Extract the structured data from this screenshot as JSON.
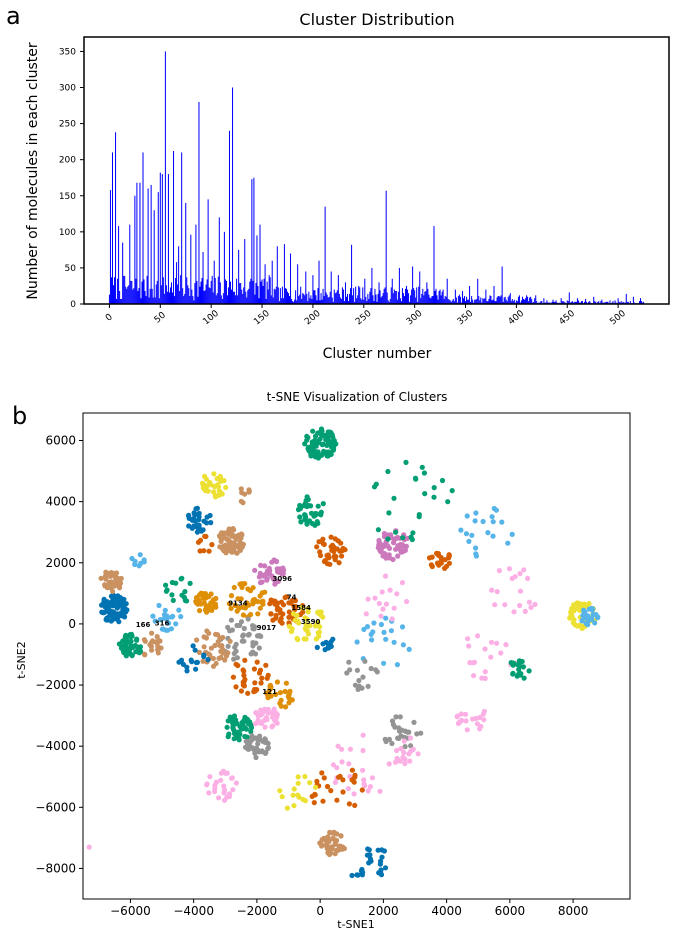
{
  "panels": {
    "a": "a",
    "b": "b"
  },
  "chart_data": [
    {
      "type": "bar",
      "title": "Cluster Distribution",
      "xlabel": "Cluster number",
      "ylabel": "Number of molecules in each cluster",
      "xlim": [
        -25,
        550
      ],
      "ylim": [
        0,
        370
      ],
      "xticks": [
        0,
        50,
        100,
        150,
        200,
        250,
        300,
        350,
        400,
        450,
        500
      ],
      "yticks": [
        0,
        50,
        100,
        150,
        200,
        250,
        300,
        350
      ],
      "color": "#0000ff",
      "peaks": [
        {
          "x": 1,
          "y": 158
        },
        {
          "x": 3,
          "y": 210
        },
        {
          "x": 6,
          "y": 238
        },
        {
          "x": 9,
          "y": 108
        },
        {
          "x": 13,
          "y": 85
        },
        {
          "x": 20,
          "y": 110
        },
        {
          "x": 25,
          "y": 150
        },
        {
          "x": 27,
          "y": 168
        },
        {
          "x": 30,
          "y": 168
        },
        {
          "x": 33,
          "y": 210
        },
        {
          "x": 38,
          "y": 160
        },
        {
          "x": 41,
          "y": 165
        },
        {
          "x": 44,
          "y": 130
        },
        {
          "x": 48,
          "y": 155
        },
        {
          "x": 50,
          "y": 182
        },
        {
          "x": 52,
          "y": 180
        },
        {
          "x": 55,
          "y": 350
        },
        {
          "x": 58,
          "y": 180
        },
        {
          "x": 63,
          "y": 212
        },
        {
          "x": 66,
          "y": 58
        },
        {
          "x": 68,
          "y": 80
        },
        {
          "x": 71,
          "y": 210
        },
        {
          "x": 75,
          "y": 140
        },
        {
          "x": 80,
          "y": 96
        },
        {
          "x": 85,
          "y": 110
        },
        {
          "x": 88,
          "y": 280
        },
        {
          "x": 92,
          "y": 72
        },
        {
          "x": 97,
          "y": 145
        },
        {
          "x": 103,
          "y": 60
        },
        {
          "x": 108,
          "y": 120
        },
        {
          "x": 113,
          "y": 100
        },
        {
          "x": 118,
          "y": 240
        },
        {
          "x": 121,
          "y": 300
        },
        {
          "x": 127,
          "y": 75
        },
        {
          "x": 133,
          "y": 90
        },
        {
          "x": 140,
          "y": 173
        },
        {
          "x": 142,
          "y": 175
        },
        {
          "x": 145,
          "y": 95
        },
        {
          "x": 148,
          "y": 110
        },
        {
          "x": 153,
          "y": 55
        },
        {
          "x": 160,
          "y": 60
        },
        {
          "x": 165,
          "y": 80
        },
        {
          "x": 172,
          "y": 83
        },
        {
          "x": 178,
          "y": 70
        },
        {
          "x": 185,
          "y": 55
        },
        {
          "x": 193,
          "y": 45
        },
        {
          "x": 200,
          "y": 40
        },
        {
          "x": 206,
          "y": 60
        },
        {
          "x": 212,
          "y": 135
        },
        {
          "x": 218,
          "y": 45
        },
        {
          "x": 225,
          "y": 40
        },
        {
          "x": 232,
          "y": 30
        },
        {
          "x": 238,
          "y": 82
        },
        {
          "x": 245,
          "y": 25
        },
        {
          "x": 251,
          "y": 35
        },
        {
          "x": 258,
          "y": 50
        },
        {
          "x": 265,
          "y": 30
        },
        {
          "x": 272,
          "y": 157
        },
        {
          "x": 278,
          "y": 35
        },
        {
          "x": 285,
          "y": 50
        },
        {
          "x": 292,
          "y": 25
        },
        {
          "x": 298,
          "y": 52
        },
        {
          "x": 305,
          "y": 45
        },
        {
          "x": 312,
          "y": 30
        },
        {
          "x": 319,
          "y": 108
        },
        {
          "x": 325,
          "y": 20
        },
        {
          "x": 332,
          "y": 35
        },
        {
          "x": 340,
          "y": 20
        },
        {
          "x": 347,
          "y": 18
        },
        {
          "x": 354,
          "y": 25
        },
        {
          "x": 362,
          "y": 35
        },
        {
          "x": 370,
          "y": 20
        },
        {
          "x": 378,
          "y": 25
        },
        {
          "x": 386,
          "y": 52
        },
        {
          "x": 394,
          "y": 15
        },
        {
          "x": 402,
          "y": 10
        },
        {
          "x": 410,
          "y": 12
        },
        {
          "x": 418,
          "y": 8
        },
        {
          "x": 427,
          "y": 8
        },
        {
          "x": 436,
          "y": 6
        },
        {
          "x": 444,
          "y": 8
        },
        {
          "x": 452,
          "y": 16
        },
        {
          "x": 460,
          "y": 8
        },
        {
          "x": 468,
          "y": 7
        },
        {
          "x": 476,
          "y": 10
        },
        {
          "x": 484,
          "y": 6
        },
        {
          "x": 492,
          "y": 5
        },
        {
          "x": 500,
          "y": 8
        },
        {
          "x": 508,
          "y": 14
        },
        {
          "x": 515,
          "y": 10
        },
        {
          "x": 522,
          "y": 8
        }
      ]
    },
    {
      "type": "scatter",
      "title": "t-SNE Visualization of Clusters",
      "xlabel": "t-SNE1",
      "ylabel": "t-SNE2",
      "xlim": [
        -7500,
        9800
      ],
      "ylim": [
        -9000,
        6900
      ],
      "xticks": [
        -6000,
        -4000,
        -2000,
        0,
        2000,
        4000,
        6000,
        8000
      ],
      "yticks": [
        -8000,
        -6000,
        -4000,
        -2000,
        0,
        2000,
        4000,
        6000
      ],
      "palette": [
        "#0173b2",
        "#de8f05",
        "#029e73",
        "#d55e00",
        "#cc78bc",
        "#ca9161",
        "#fbafe4",
        "#949494",
        "#ece133",
        "#56b4e9"
      ],
      "blobs": [
        {
          "x": 0,
          "y": 5900,
          "r": 500,
          "color": 2,
          "n": 80
        },
        {
          "x": -2800,
          "y": 2700,
          "r": 430,
          "color": 5,
          "n": 70
        },
        {
          "x": -6500,
          "y": 500,
          "r": 450,
          "color": 0,
          "n": 80
        },
        {
          "x": -6000,
          "y": -700,
          "r": 380,
          "color": 2,
          "n": 50
        },
        {
          "x": -3600,
          "y": 700,
          "r": 370,
          "color": 1,
          "n": 40
        },
        {
          "x": -6600,
          "y": 1400,
          "r": 350,
          "color": 5,
          "n": 35
        },
        {
          "x": -2600,
          "y": -3400,
          "r": 430,
          "color": 2,
          "n": 50
        },
        {
          "x": -2000,
          "y": -4000,
          "r": 380,
          "color": 7,
          "n": 40
        },
        {
          "x": -1700,
          "y": -3100,
          "r": 400,
          "color": 6,
          "n": 35
        },
        {
          "x": 2300,
          "y": 2600,
          "r": 500,
          "color": 4,
          "n": 50
        },
        {
          "x": 8300,
          "y": 300,
          "r": 450,
          "color": 8,
          "n": 40
        },
        {
          "x": 8500,
          "y": 200,
          "r": 320,
          "color": 9,
          "n": 25
        },
        {
          "x": 400,
          "y": -7200,
          "r": 420,
          "color": 5,
          "n": 40
        },
        {
          "x": -3400,
          "y": 4500,
          "r": 420,
          "color": 8,
          "n": 30
        },
        {
          "x": -3800,
          "y": 3400,
          "r": 420,
          "color": 0,
          "n": 30
        },
        {
          "x": -300,
          "y": 3700,
          "r": 500,
          "color": 2,
          "n": 35
        },
        {
          "x": 300,
          "y": 2400,
          "r": 500,
          "color": 3,
          "n": 35
        },
        {
          "x": -1600,
          "y": 1700,
          "r": 500,
          "color": 4,
          "n": 35
        },
        {
          "x": -2300,
          "y": 800,
          "r": 600,
          "color": 1,
          "n": 40
        },
        {
          "x": -1100,
          "y": 500,
          "r": 600,
          "color": 3,
          "n": 40
        },
        {
          "x": -2500,
          "y": -500,
          "r": 700,
          "color": 7,
          "n": 40
        },
        {
          "x": -400,
          "y": 0,
          "r": 600,
          "color": 8,
          "n": 40
        },
        {
          "x": -3400,
          "y": -800,
          "r": 600,
          "color": 5,
          "n": 35
        },
        {
          "x": -2200,
          "y": -1700,
          "r": 600,
          "color": 3,
          "n": 30
        },
        {
          "x": -1300,
          "y": -2300,
          "r": 500,
          "color": 1,
          "n": 25
        },
        {
          "x": -4800,
          "y": 200,
          "r": 500,
          "color": 9,
          "n": 20
        },
        {
          "x": -5300,
          "y": -700,
          "r": 400,
          "color": 5,
          "n": 20
        },
        {
          "x": -5800,
          "y": 2100,
          "r": 250,
          "color": 9,
          "n": 8
        },
        {
          "x": -3700,
          "y": 2600,
          "r": 300,
          "color": 3,
          "n": 8
        },
        {
          "x": -2400,
          "y": 4200,
          "r": 250,
          "color": 5,
          "n": 8
        },
        {
          "x": -3100,
          "y": -5300,
          "r": 500,
          "color": 6,
          "n": 25
        },
        {
          "x": 3800,
          "y": 2100,
          "r": 350,
          "color": 3,
          "n": 20
        },
        {
          "x": 2900,
          "y": 3900,
          "r": 1400,
          "color": 2,
          "n": 25
        },
        {
          "x": 5200,
          "y": 3000,
          "r": 900,
          "color": 9,
          "n": 20
        },
        {
          "x": 6000,
          "y": 1000,
          "r": 900,
          "color": 6,
          "n": 18
        },
        {
          "x": 5400,
          "y": -1000,
          "r": 900,
          "color": 6,
          "n": 18
        },
        {
          "x": 6300,
          "y": -1500,
          "r": 350,
          "color": 2,
          "n": 20
        },
        {
          "x": 4800,
          "y": -3000,
          "r": 500,
          "color": 6,
          "n": 18
        },
        {
          "x": 2600,
          "y": -3600,
          "r": 600,
          "color": 7,
          "n": 25
        },
        {
          "x": 2700,
          "y": -4200,
          "r": 500,
          "color": 6,
          "n": 15
        },
        {
          "x": 1400,
          "y": -4700,
          "r": 1100,
          "color": 6,
          "n": 25
        },
        {
          "x": 500,
          "y": -5300,
          "r": 900,
          "color": 3,
          "n": 25
        },
        {
          "x": 1700,
          "y": -7800,
          "r": 500,
          "color": 0,
          "n": 20
        },
        {
          "x": 1200,
          "y": -8300,
          "r": 250,
          "color": 0,
          "n": 6
        },
        {
          "x": 2000,
          "y": -600,
          "r": 900,
          "color": 9,
          "n": 20
        },
        {
          "x": 2100,
          "y": 800,
          "r": 900,
          "color": 6,
          "n": 15
        },
        {
          "x": 1300,
          "y": -1700,
          "r": 600,
          "color": 7,
          "n": 15
        },
        {
          "x": 200,
          "y": -700,
          "r": 300,
          "color": 0,
          "n": 10
        },
        {
          "x": -4500,
          "y": 1100,
          "r": 500,
          "color": 2,
          "n": 15
        },
        {
          "x": -4000,
          "y": -1200,
          "r": 500,
          "color": 0,
          "n": 15
        },
        {
          "x": -800,
          "y": -5500,
          "r": 700,
          "color": 8,
          "n": 15
        },
        {
          "x": -7300,
          "y": -7300,
          "r": 10,
          "color": 6,
          "n": 1
        }
      ],
      "annotations": [
        {
          "text": "3096",
          "x": -1200,
          "y": 1400
        },
        {
          "text": "74",
          "x": -900,
          "y": 800
        },
        {
          "text": "9134",
          "x": -2600,
          "y": 600
        },
        {
          "text": "1584",
          "x": -600,
          "y": 450
        },
        {
          "text": "3590",
          "x": -300,
          "y": 0
        },
        {
          "text": "9017",
          "x": -1700,
          "y": -200
        },
        {
          "text": "166",
          "x": -5600,
          "y": -100
        },
        {
          "text": "316",
          "x": -5000,
          "y": -50
        },
        {
          "text": "121",
          "x": -1600,
          "y": -2300
        }
      ]
    }
  ]
}
